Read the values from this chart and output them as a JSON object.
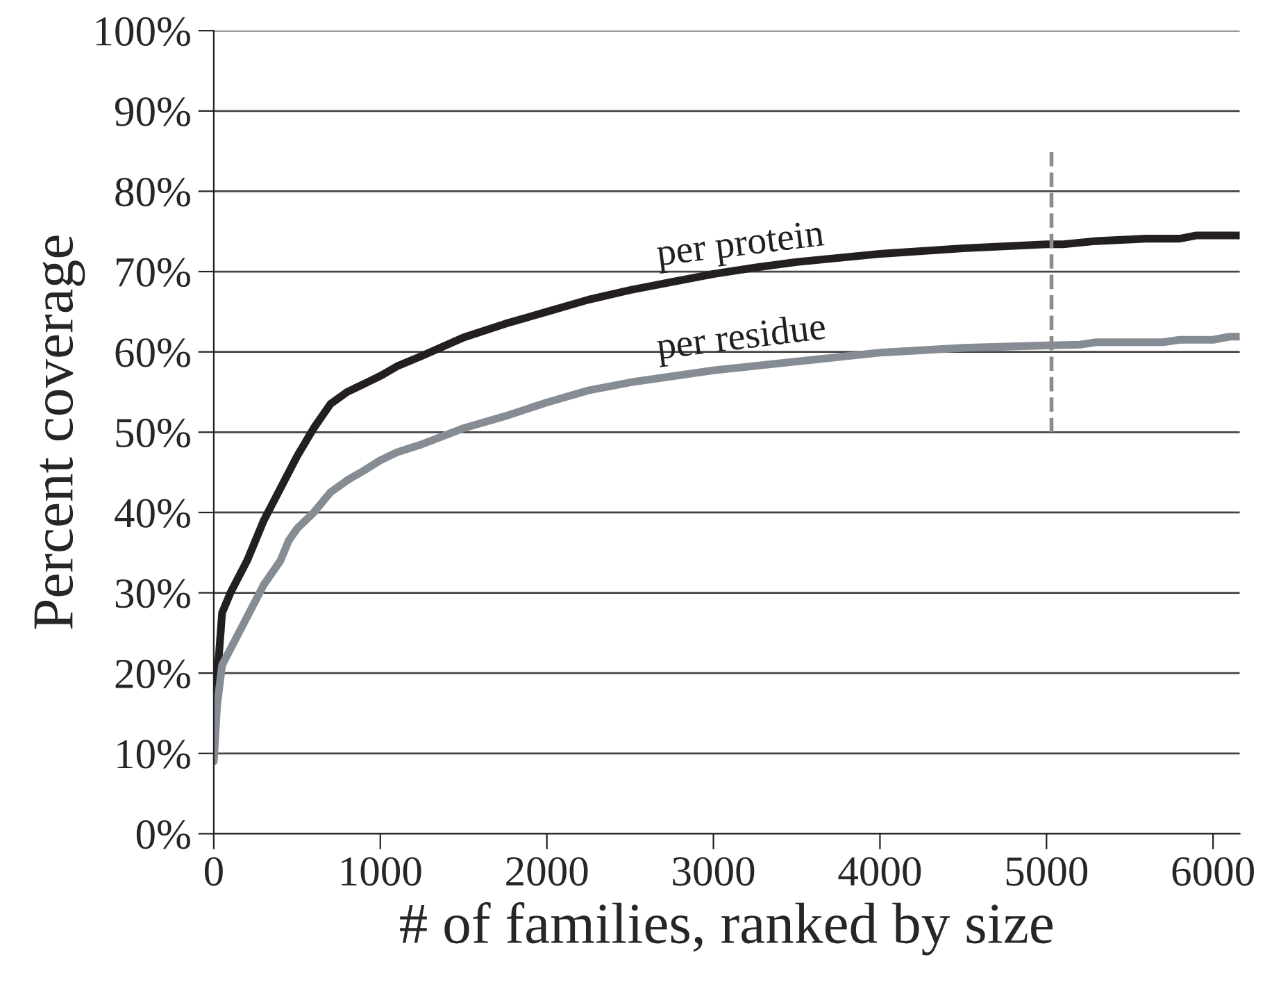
{
  "chart_data": {
    "type": "line",
    "xlabel": "# of families, ranked by size",
    "ylabel": "Percent coverage",
    "xlim": [
      0,
      6160
    ],
    "xticks": [
      0,
      1000,
      2000,
      3000,
      4000,
      5000,
      6000
    ],
    "ylim": [
      0,
      100
    ],
    "yticks": [
      {
        "value": 0,
        "label": "0%"
      },
      {
        "value": 10,
        "label": "10%"
      },
      {
        "value": 20,
        "label": "20%"
      },
      {
        "value": 30,
        "label": "30%"
      },
      {
        "value": 40,
        "label": "40%"
      },
      {
        "value": 50,
        "label": "50%"
      },
      {
        "value": 60,
        "label": "60%"
      },
      {
        "value": 70,
        "label": "70%"
      },
      {
        "value": 80,
        "label": "80%"
      },
      {
        "value": 90,
        "label": "90%"
      },
      {
        "value": 100,
        "label": "100%"
      }
    ],
    "grid": "y",
    "legend": false,
    "line_style": "solid",
    "ref_lines": [
      {
        "axis": "x",
        "value": 5030,
        "color": "#8c8c8c",
        "line_style": "dashed"
      }
    ],
    "series": [
      {
        "name": "per protein",
        "color": "#231f20",
        "x": [
          0,
          30,
          50,
          100,
          200,
          300,
          400,
          500,
          600,
          700,
          800,
          900,
          1000,
          1100,
          1250,
          1500,
          1750,
          2000,
          2250,
          2500,
          2750,
          3000,
          3250,
          3500,
          4000,
          4500,
          5000,
          5100,
          5300,
          5600,
          5800,
          5900,
          6160
        ],
        "values": [
          16,
          22,
          27.5,
          30,
          34,
          39,
          43,
          47,
          50.5,
          53.5,
          55,
          56,
          57,
          58.2,
          59.5,
          61.8,
          63.5,
          65,
          66.5,
          67.7,
          68.7,
          69.7,
          70.5,
          71.2,
          72.2,
          72.9,
          73.4,
          73.4,
          73.8,
          74.1,
          74.1,
          74.5,
          74.5
        ]
      },
      {
        "name": "per residue",
        "color": "#868c93",
        "x": [
          0,
          20,
          50,
          100,
          200,
          300,
          400,
          450,
          500,
          600,
          700,
          800,
          900,
          1000,
          1100,
          1250,
          1500,
          1750,
          2000,
          2250,
          2500,
          3000,
          3500,
          4000,
          4500,
          5000,
          5200,
          5300,
          5700,
          5800,
          6000,
          6100,
          6160
        ],
        "values": [
          9,
          16,
          21,
          23,
          27,
          31,
          34,
          36.5,
          38,
          40,
          42.5,
          44,
          45.2,
          46.5,
          47.5,
          48.5,
          50.5,
          52,
          53.7,
          55.2,
          56.2,
          57.7,
          58.8,
          59.9,
          60.5,
          60.8,
          60.9,
          61.2,
          61.2,
          61.5,
          61.5,
          61.9,
          61.9
        ]
      }
    ]
  }
}
